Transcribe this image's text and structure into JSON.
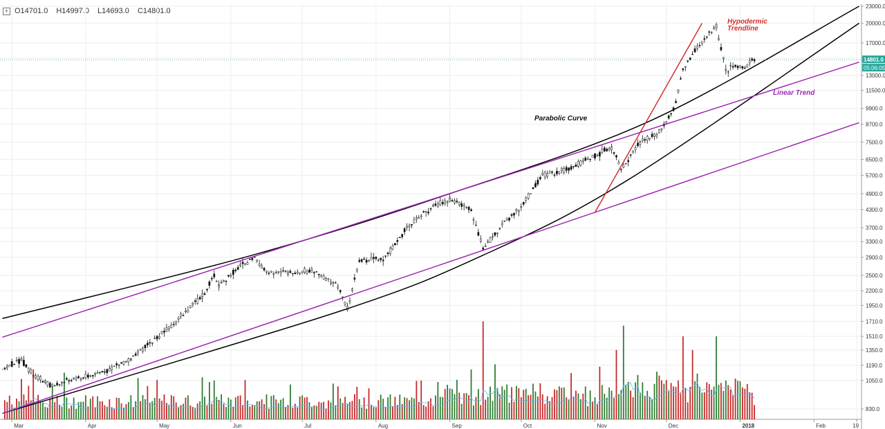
{
  "ohlc": {
    "open": "O14701.0",
    "high": "H14997.0",
    "low": "L14693.0",
    "close": "C14801.0"
  },
  "price_tag": "14801.0",
  "time_tag": "05:06:05",
  "colors": {
    "up": "#2e7d32",
    "down": "#c62828",
    "parabolic": "#000000",
    "linear": "#9c27b0",
    "hypodermic": "#d32f2f",
    "volume_ma": "#64b5f6",
    "last_price": "#26a69a"
  },
  "chart_data": {
    "type": "line",
    "title": "",
    "y_scale": "log",
    "y_ticks": [
      "23000.0",
      "20000.0",
      "17000.0",
      "15000.0",
      "13000.0",
      "11500.0",
      "9900.0",
      "8700.0",
      "7500.0",
      "6500.0",
      "5700.0",
      "4900.0",
      "4300.0",
      "3700.0",
      "3300.0",
      "2900.0",
      "2500.0",
      "2200.0",
      "1950.0",
      "1710.0",
      "1510.0",
      "1350.0",
      "1190.0",
      "1050.0",
      "830.0"
    ],
    "x_ticks": [
      "Mar",
      "Apr",
      "May",
      "Jun",
      "Jul",
      "Aug",
      "Sep",
      "Oct",
      "Nov",
      "Dec",
      "2018",
      "Feb",
      "19"
    ],
    "annotations": [
      "Hypodermic Trendline",
      "Linear Trend",
      "Parabolic Curve"
    ],
    "price_series": {
      "name": "",
      "x": [
        "2017-02-25",
        "2017-03-05",
        "2017-03-10",
        "2017-03-18",
        "2017-03-25",
        "2017-04-05",
        "2017-04-20",
        "2017-05-05",
        "2017-05-20",
        "2017-05-25",
        "2017-05-27",
        "2017-06-05",
        "2017-06-11",
        "2017-06-15",
        "2017-06-25",
        "2017-07-05",
        "2017-07-16",
        "2017-07-20",
        "2017-07-25",
        "2017-08-05",
        "2017-08-15",
        "2017-08-25",
        "2017-09-01",
        "2017-09-10",
        "2017-09-15",
        "2017-09-22",
        "2017-10-01",
        "2017-10-10",
        "2017-10-21",
        "2017-11-01",
        "2017-11-08",
        "2017-11-12",
        "2017-11-20",
        "2017-11-27",
        "2017-12-04",
        "2017-12-08",
        "2017-12-12",
        "2017-12-17",
        "2017-12-22",
        "2017-12-26",
        "2017-12-30",
        "2018-01-03",
        "2018-01-06"
      ],
      "values": [
        1150,
        1250,
        1100,
        1000,
        1050,
        1100,
        1250,
        1600,
        2100,
        2500,
        2300,
        2700,
        2900,
        2600,
        2550,
        2600,
        2300,
        1900,
        2800,
        2900,
        3800,
        4400,
        4700,
        4300,
        3100,
        3700,
        4400,
        5700,
        6000,
        6700,
        7200,
        6000,
        7500,
        8000,
        9800,
        13500,
        15500,
        17500,
        19500,
        13500,
        14000,
        13800,
        14801
      ]
    },
    "volume_series": {
      "name": "",
      "x": [
        "2017-03-10",
        "2017-03-18",
        "2017-05-25",
        "2017-07-16",
        "2017-08-20",
        "2017-09-10",
        "2017-09-15",
        "2017-09-20",
        "2017-11-10",
        "2017-11-13",
        "2017-11-29",
        "2017-12-08",
        "2017-12-12",
        "2017-12-22",
        "2017-12-26"
      ],
      "values": [
        1150,
        1000,
        1050,
        1000,
        1050,
        1150,
        1710,
        1200,
        1350,
        1650,
        1050,
        1510,
        1350,
        1510,
        1050
      ]
    },
    "trendlines": [
      {
        "name": "Parabolic Curve",
        "points": [
          [
            "2017-02-25",
            1750
          ],
          [
            "2017-06-10",
            2950
          ],
          [
            "2017-09-01",
            4900
          ],
          [
            "2017-11-25",
            9000
          ],
          [
            "2018-02-20",
            23000
          ]
        ]
      },
      {
        "name": "Parabolic Curve",
        "points": [
          [
            "2017-02-25",
            800
          ],
          [
            "2017-07-16",
            1850
          ],
          [
            "2017-09-15",
            2950
          ],
          [
            "2017-11-15",
            5500
          ],
          [
            "2018-02-20",
            20000
          ]
        ]
      },
      {
        "name": "Linear Trend",
        "points": [
          [
            "2017-02-25",
            1500
          ],
          [
            "2018-02-20",
            14500
          ]
        ]
      },
      {
        "name": "Linear Trend",
        "points": [
          [
            "2017-02-25",
            800
          ],
          [
            "2018-02-20",
            8800
          ]
        ]
      },
      {
        "name": "Hypodermic Trendline",
        "points": [
          [
            "2017-11-01",
            4200
          ],
          [
            "2017-12-16",
            20000
          ]
        ]
      }
    ]
  }
}
